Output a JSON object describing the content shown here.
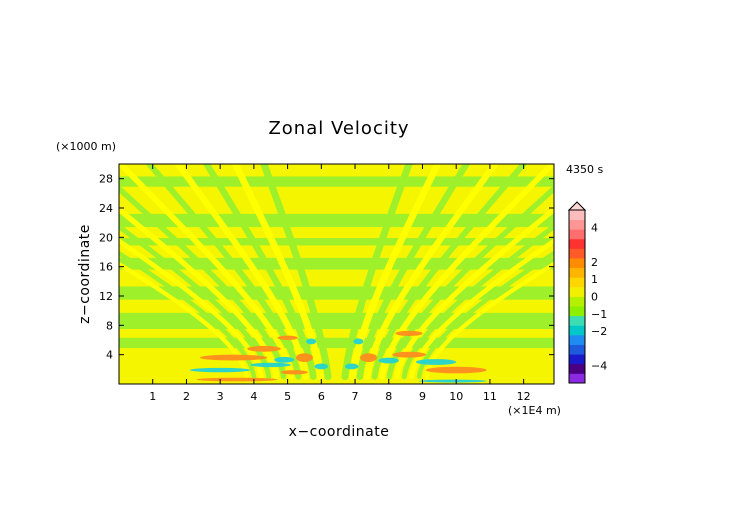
{
  "chart_data": {
    "type": "heatmap",
    "title": "Zonal Velocity",
    "time_label": "4350 s",
    "xlabel": "x−coordinate",
    "ylabel": "z−coordinate",
    "x_unit": "(×1E4 m)",
    "y_unit": "(×1000 m)",
    "xlim": [
      0,
      12.9
    ],
    "ylim": [
      0,
      30
    ],
    "x_ticks": [
      1,
      2,
      3,
      4,
      5,
      6,
      7,
      8,
      9,
      10,
      11,
      12
    ],
    "y_ticks": [
      4,
      8,
      12,
      16,
      20,
      24,
      28
    ],
    "colorbar": {
      "labeled_ticks": [
        4,
        2,
        1,
        0,
        -1,
        -2,
        -4
      ],
      "range": [
        -5,
        5
      ],
      "colors": [
        "#8a2be2",
        "#4b0082",
        "#1a1acd",
        "#1e5adc",
        "#1e8cf0",
        "#00c8c8",
        "#3cdcb4",
        "#8cf000",
        "#b4f000",
        "#f0f000",
        "#ffd700",
        "#ffb400",
        "#ff8c00",
        "#ff5a28",
        "#ff3232",
        "#ff6e6e",
        "#ff9696",
        "#ffbcbc"
      ]
    },
    "features": {
      "background_positive": "#ffff00",
      "background_negative": "#9ef02a",
      "strong_positive": "#ff8c1e",
      "strong_negative": "#22d2d2"
    }
  }
}
